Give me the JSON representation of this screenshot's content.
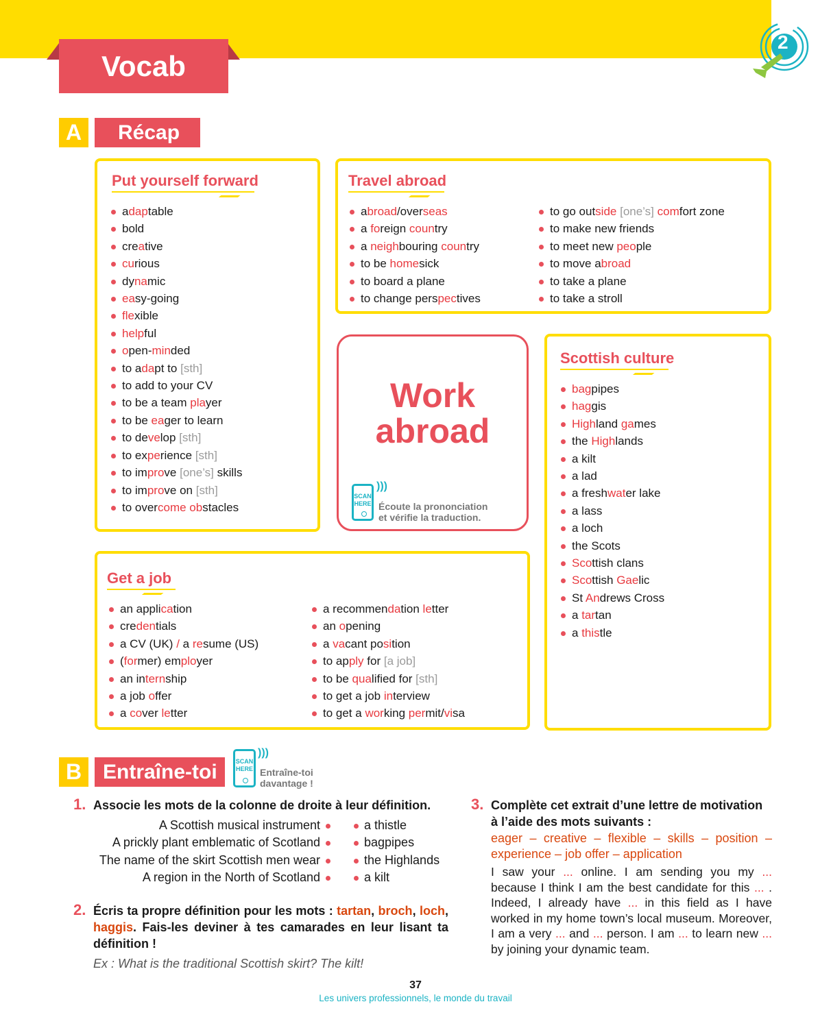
{
  "header": {
    "tab_label": "Vocab",
    "unit_number": "2",
    "colors": {
      "yellow": "#FFDD00",
      "red": "#E8505B",
      "teal": "#1BB3C4",
      "green": "#8DC63F"
    }
  },
  "section_a": {
    "letter": "A",
    "label": "Récap"
  },
  "put_yourself_forward": {
    "title": "Put yourself forward",
    "items": [
      [
        "a",
        "dap",
        "table"
      ],
      [
        "bold"
      ],
      [
        "cre",
        "a",
        "tive"
      ],
      [
        "",
        "cu",
        "rious"
      ],
      [
        "dy",
        "na",
        "mic"
      ],
      [
        "",
        "ea",
        "sy-going"
      ],
      [
        "",
        "fle",
        "xible"
      ],
      [
        "",
        "help",
        "ful"
      ],
      [
        "",
        "o",
        "pen-",
        "min",
        "ded"
      ],
      [
        "to a",
        "da",
        "pt to ",
        "[sth]"
      ],
      [
        "to add to your CV"
      ],
      [
        "to be a team ",
        "pla",
        "yer"
      ],
      [
        "to be ",
        "ea",
        "ger to learn"
      ],
      [
        "to de",
        "ve",
        "lop ",
        "[sth]"
      ],
      [
        "to ex",
        "pe",
        "rience ",
        "[sth]"
      ],
      [
        "to im",
        "pro",
        "ve ",
        "[one’s]",
        " skills"
      ],
      [
        "to im",
        "pro",
        "ve on ",
        "[sth]"
      ],
      [
        "to over",
        "come",
        " ",
        "ob",
        "stacles"
      ]
    ]
  },
  "travel_abroad": {
    "title": "Travel abroad",
    "col1": [
      [
        "a",
        "broad",
        "/over",
        "seas"
      ],
      [
        "a ",
        "fo",
        "reign ",
        "coun",
        "try"
      ],
      [
        "a ",
        "neigh",
        "bouring ",
        "coun",
        "try"
      ],
      [
        "to be ",
        "home",
        "sick"
      ],
      [
        "to board a plane"
      ],
      [
        "to change pers",
        "pec",
        "tives"
      ]
    ],
    "col2": [
      [
        "to go out",
        "side",
        " ",
        "[one’s]",
        " ",
        "com",
        "fort zone"
      ],
      [
        "to make new friends"
      ],
      [
        "to meet new ",
        "peo",
        "ple"
      ],
      [
        "to move a",
        "broad"
      ],
      [
        "to take a plane"
      ],
      [
        "to take a stroll"
      ]
    ]
  },
  "work_abroad": {
    "title_line1": "Work",
    "title_line2": "abroad",
    "scan_line1": "SCAN",
    "scan_line2": "HERE",
    "caption_line1": "Écoute la prononciation",
    "caption_line2": "et vérifie la traduction."
  },
  "scottish_culture": {
    "title": "Scottish culture",
    "items": [
      [
        "",
        "bag",
        "pipes"
      ],
      [
        "",
        "hag",
        "gis"
      ],
      [
        "",
        "High",
        "land ",
        "ga",
        "mes"
      ],
      [
        "the ",
        "High",
        "lands"
      ],
      [
        "a kilt"
      ],
      [
        "a lad"
      ],
      [
        "a fresh",
        "wat",
        "er lake"
      ],
      [
        "a lass"
      ],
      [
        "a loch"
      ],
      [
        "the Scots"
      ],
      [
        "",
        "Sco",
        "ttish clans"
      ],
      [
        "",
        "Sco",
        "ttish ",
        "Gae",
        "lic"
      ],
      [
        "St ",
        "An",
        "drews Cross"
      ],
      [
        "a ",
        "tar",
        "tan"
      ],
      [
        "a ",
        "this",
        "tle"
      ]
    ]
  },
  "get_a_job": {
    "title": "Get a job",
    "col1": [
      [
        "an appli",
        "ca",
        "tion"
      ],
      [
        "cre",
        "den",
        "tials"
      ],
      [
        "a CV (UK) ",
        "/",
        " a ",
        "re",
        "sume (US)"
      ],
      [
        "(",
        "for",
        "mer) em",
        "plo",
        "yer"
      ],
      [
        "an in",
        "tern",
        "ship"
      ],
      [
        "a job ",
        "o",
        "ffer"
      ],
      [
        "a ",
        "co",
        "ver ",
        "le",
        "tter"
      ]
    ],
    "col2": [
      [
        "a recommen",
        "da",
        "tion ",
        "le",
        "tter"
      ],
      [
        "an ",
        "o",
        "pening"
      ],
      [
        "a ",
        "va",
        "cant po",
        "si",
        "tion"
      ],
      [
        "to ap",
        "ply",
        " for ",
        "[a job]"
      ],
      [
        "to be ",
        "qua",
        "lified for ",
        "[sth]"
      ],
      [
        "to get a job ",
        "in",
        "terview"
      ],
      [
        "to get a ",
        "wor",
        "king ",
        "per",
        "mit/",
        "vi",
        "sa"
      ]
    ]
  },
  "section_b": {
    "letter": "B",
    "label": "Entraîne-toi",
    "scan_line1": "SCAN",
    "scan_line2": "HERE",
    "caption_line1": "Entraîne-toi",
    "caption_line2": "davantage !"
  },
  "exercise1": {
    "number": "1.",
    "instruction": "Associe les mots de la colonne de droite à leur définition.",
    "definitions": [
      "A Scottish musical instrument",
      "A prickly plant emblematic of Scotland",
      "The name of the skirt Scottish men wear",
      "A region in the North of Scotland"
    ],
    "words": [
      "a thistle",
      "bagpipes",
      "the Highlands",
      "a kilt"
    ]
  },
  "exercise2": {
    "number": "2.",
    "instruction": [
      "Écris ta propre définition pour les mots : ",
      "tartan",
      ", ",
      "broch",
      ", ",
      "loch",
      ", ",
      "haggis",
      ". Fais-les deviner à tes camarades en leur lisant ta définition !"
    ],
    "example": "Ex : What is the traditional Scottish skirt? The kilt!"
  },
  "exercise3": {
    "number": "3.",
    "instruction": "Complète cet extrait d’une lettre de motivation à l’aide des mots suivants :",
    "word_bank": "eager – creative – flexible – skills – position – experience – job offer – application",
    "text": [
      "I saw your ",
      "...",
      " online. I am sending you my ",
      "...",
      " because I think I am the best candidate for this ",
      "...",
      " . Indeed, I already have ",
      "...",
      " in this field as I have worked in my home town’s local museum. Moreover, I am a very ",
      "...",
      " and ",
      "...",
      " person. I am ",
      "...",
      " to learn new ",
      "...",
      " by joining your dynamic team."
    ]
  },
  "footer": {
    "page_number": "37",
    "subtitle": "Les univers professionnels, le monde du travail"
  }
}
